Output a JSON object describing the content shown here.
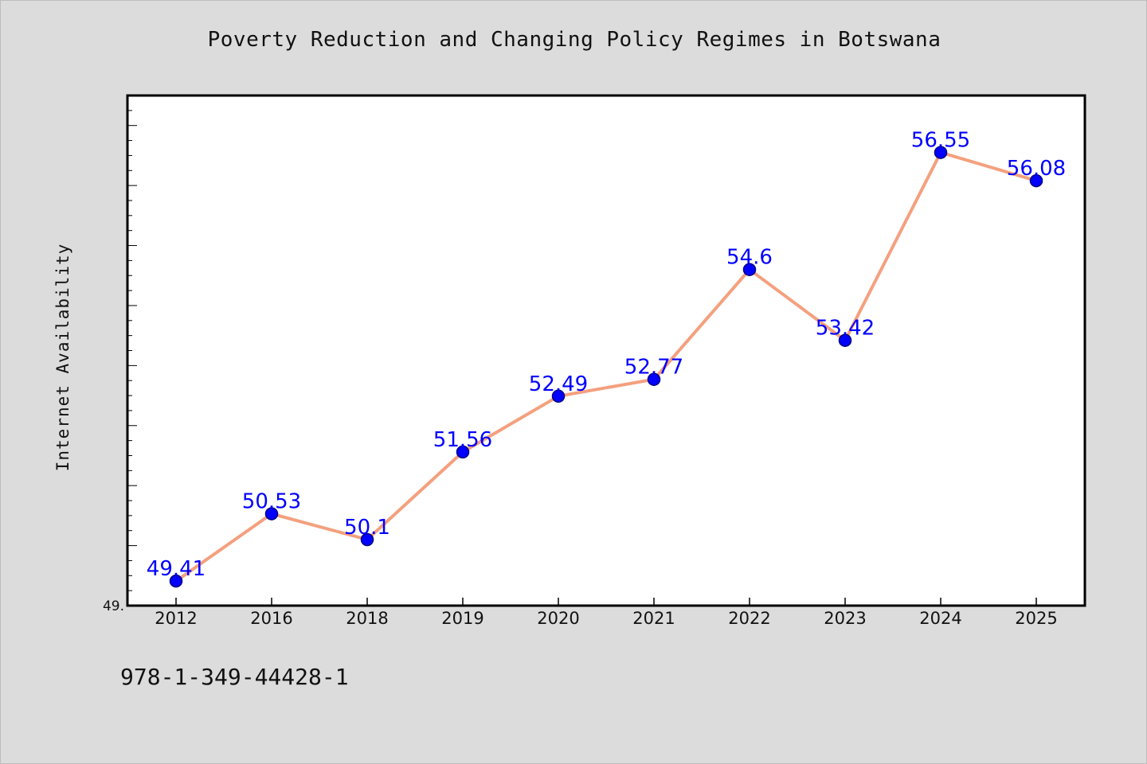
{
  "chart_data": {
    "type": "line",
    "title": "Poverty Reduction and Changing Policy Regimes in Botswana",
    "xlabel": "",
    "ylabel": "Internet Availability",
    "categories": [
      "2012",
      "2016",
      "2018",
      "2019",
      "2020",
      "2021",
      "2022",
      "2023",
      "2024",
      "2025"
    ],
    "series": [
      {
        "values": [
          49.41,
          50.53,
          50.1,
          51.56,
          52.49,
          52.77,
          54.6,
          53.42,
          56.55,
          56.08
        ]
      }
    ],
    "data_labels": [
      "49.41",
      "50.53",
      "50.1",
      "51.56",
      "52.49",
      "52.77",
      "54.6",
      "53.42",
      "56.55",
      "56.08"
    ],
    "ylim": [
      49.0,
      57.5
    ],
    "ytick_labels": [
      "49."
    ],
    "grid": false,
    "colors": {
      "line": "#f4a07e",
      "marker": "#0000ff",
      "marker_edge": "#000080",
      "label": "#0000ff",
      "background": "#dcdcdc",
      "plot_background": "#ffffff"
    }
  },
  "footer_text": "978-1-349-44428-1"
}
